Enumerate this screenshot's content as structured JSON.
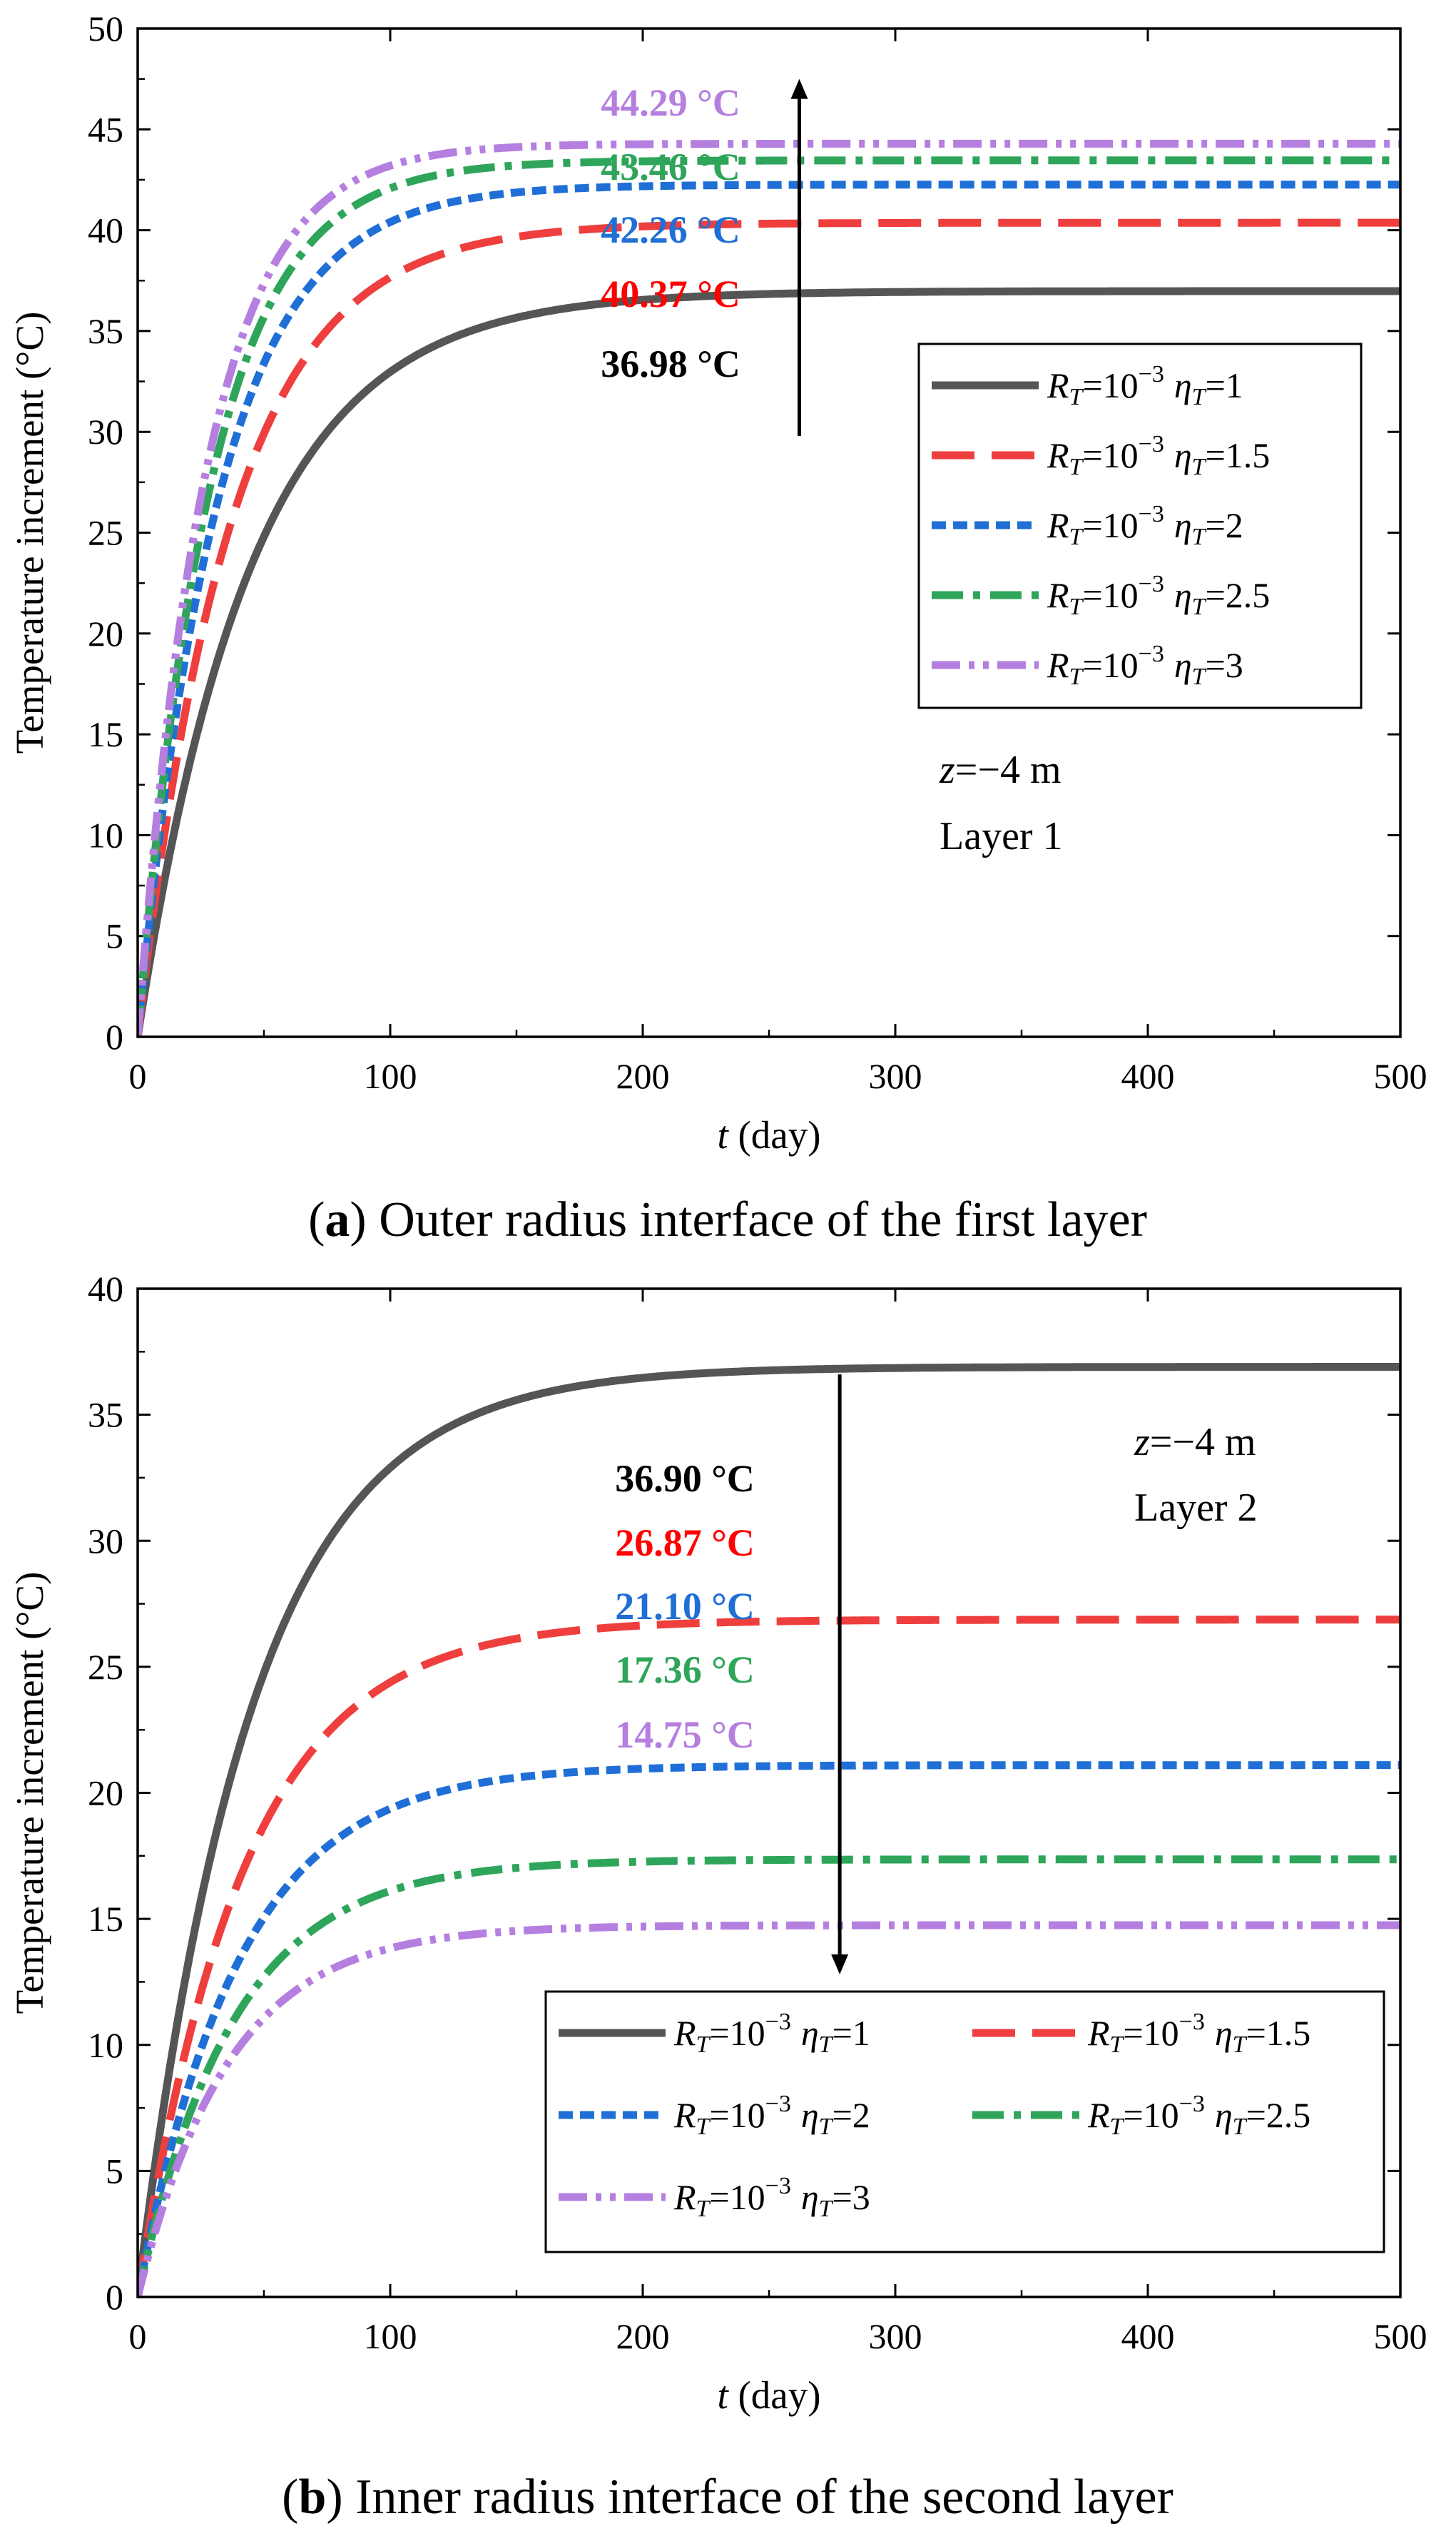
{
  "chart_data": [
    {
      "type": "line",
      "caption_label": "a",
      "caption_text": "Outer radius interface of the first layer",
      "xlabel_var": "t",
      "xlabel_unit": "(day)",
      "ylabel": "Temperature increment (°C)",
      "xlim": [
        0,
        500
      ],
      "ylim": [
        0,
        50
      ],
      "xticks": [
        0,
        100,
        200,
        300,
        400,
        500
      ],
      "yticks": [
        0,
        5,
        10,
        15,
        20,
        25,
        30,
        35,
        40,
        45,
        50
      ],
      "condition_line1": "z=−4 m",
      "condition_line2": "Layer 1",
      "arrow": {
        "x": 262,
        "y_from": 29.8,
        "y_to": 47.5
      },
      "legend_placement": "right-middle",
      "legend_columns": 1,
      "series": [
        {
          "name": "R_T=10^-3 η_T=1",
          "R_T": "10",
          "R_T_exp": "−3",
          "eta_T": "=1",
          "final": 36.98,
          "tau": 45,
          "color": "#555555",
          "dash": "solid",
          "annotation": "36.98 °C",
          "anno_color": "#000000"
        },
        {
          "name": "R_T=10^-3 η_T=1.5",
          "R_T": "10",
          "R_T_exp": "−3",
          "eta_T": "=1.5",
          "final": 40.37,
          "tau": 37,
          "color": "#ef3e3e",
          "dash": "long",
          "annotation": "40.37 °C",
          "anno_color": "#ff0000"
        },
        {
          "name": "R_T=10^-3 η_T=2",
          "R_T": "10",
          "R_T_exp": "−3",
          "eta_T": "=2",
          "final": 42.26,
          "tau": 32,
          "color": "#1f6fd6",
          "dash": "short",
          "annotation": "42.26 °C",
          "anno_color": "#1f6fd6"
        },
        {
          "name": "R_T=10^-3 η_T=2.5",
          "R_T": "10",
          "R_T_exp": "−3",
          "eta_T": "=2.5",
          "final": 43.46,
          "tau": 29,
          "color": "#2ea55a",
          "dash": "dashdot",
          "annotation": "43.46 °C",
          "anno_color": "#2ea55a"
        },
        {
          "name": "R_T=10^-3 η_T=3",
          "R_T": "10",
          "R_T_exp": "−3",
          "eta_T": "=3",
          "final": 44.29,
          "tau": 27,
          "color": "#b57fe0",
          "dash": "dashdotdot",
          "annotation": "44.29 °C",
          "anno_color": "#b57fe0"
        }
      ]
    },
    {
      "type": "line",
      "caption_label": "b",
      "caption_text": "Inner radius interface of the second layer",
      "xlabel_var": "t",
      "xlabel_unit": "(day)",
      "ylabel": "Temperature increment (°C)",
      "xlim": [
        0,
        500
      ],
      "ylim": [
        0,
        40
      ],
      "xticks": [
        0,
        100,
        200,
        300,
        400,
        500
      ],
      "yticks": [
        0,
        5,
        10,
        15,
        20,
        25,
        30,
        35,
        40
      ],
      "condition_line1": "z=−4 m",
      "condition_line2": "Layer 2",
      "arrow": {
        "x": 278,
        "y_from": 36.6,
        "y_to": 12.8
      },
      "legend_placement": "bottom-right",
      "legend_columns": 2,
      "series": [
        {
          "name": "R_T=10^-3 η_T=1",
          "R_T": "10",
          "R_T_exp": "−3",
          "eta_T": "=1",
          "final": 36.9,
          "tau": 45,
          "color": "#555555",
          "dash": "solid",
          "annotation": "36.90 °C",
          "anno_color": "#000000"
        },
        {
          "name": "R_T=10^-3 η_T=1.5",
          "R_T": "10",
          "R_T_exp": "−3",
          "eta_T": "=1.5",
          "final": 26.87,
          "tau": 42,
          "color": "#ef3e3e",
          "dash": "long",
          "annotation": "26.87 °C",
          "anno_color": "#ff0000"
        },
        {
          "name": "R_T=10^-3 η_T=2",
          "R_T": "10",
          "R_T_exp": "−3",
          "eta_T": "=2",
          "final": 21.1,
          "tau": 40,
          "color": "#1f6fd6",
          "dash": "short",
          "annotation": "21.10 °C",
          "anno_color": "#1f6fd6"
        },
        {
          "name": "R_T=10^-3 η_T=2.5",
          "R_T": "10",
          "R_T_exp": "−3",
          "eta_T": "=2.5",
          "final": 17.36,
          "tau": 38,
          "color": "#2ea55a",
          "dash": "dashdot",
          "annotation": "17.36 °C",
          "anno_color": "#2ea55a"
        },
        {
          "name": "R_T=10^-3 η_T=3",
          "R_T": "10",
          "R_T_exp": "−3",
          "eta_T": "=3",
          "final": 14.75,
          "tau": 36,
          "color": "#b57fe0",
          "dash": "dashdotdot",
          "annotation": "14.75 °C",
          "anno_color": "#b57fe0"
        }
      ]
    }
  ]
}
